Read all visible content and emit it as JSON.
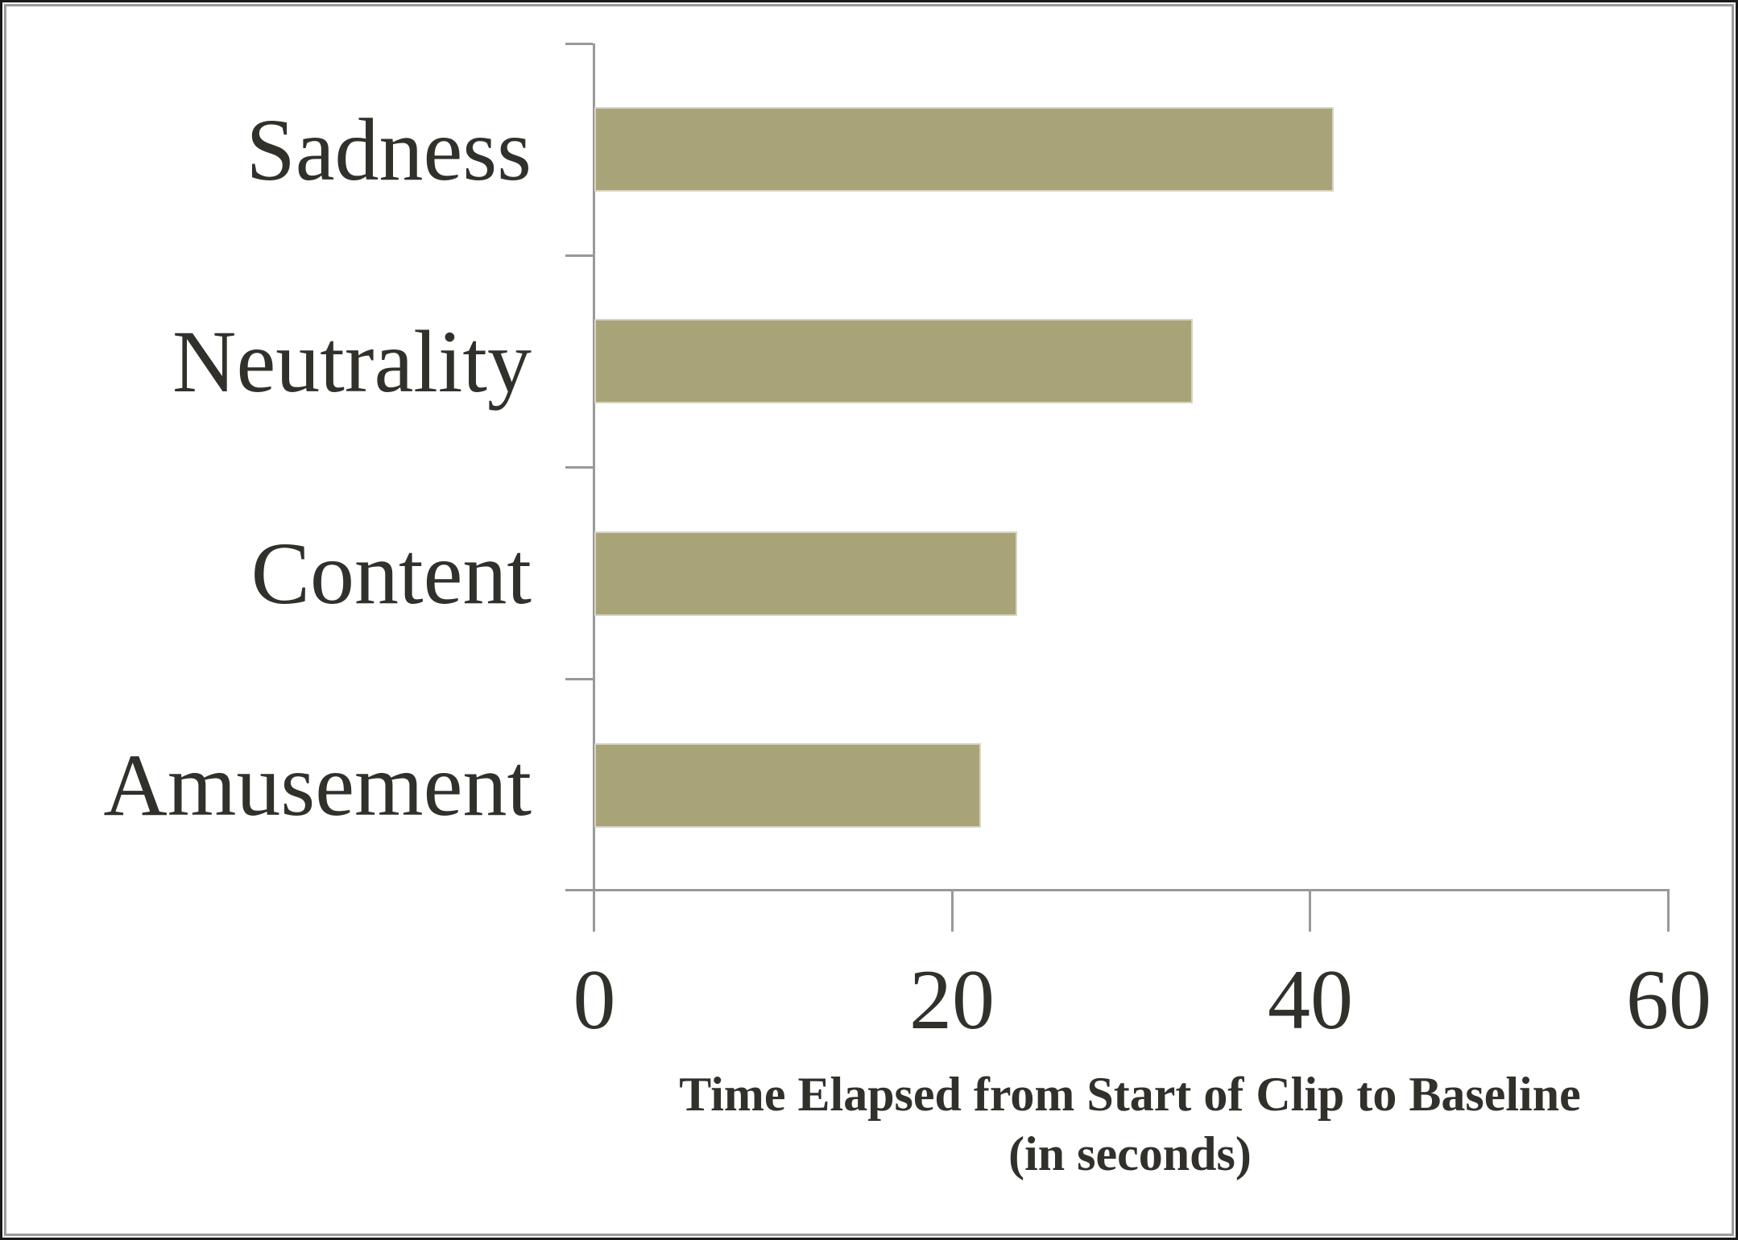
{
  "chart_data": {
    "type": "bar",
    "orientation": "horizontal",
    "categories": [
      "Sadness",
      "Neutrality",
      "Content",
      "Amusement"
    ],
    "values": [
      41.3,
      33.4,
      23.6,
      21.6
    ],
    "xlabel": "Time Elapsed from Start of Clip to Baseline (in seconds)",
    "xlabel_lines": [
      "Time Elapsed from Start of Clip to Baseline",
      "(in seconds)"
    ],
    "xlim": [
      0,
      60
    ],
    "xticks": [
      "0",
      "20",
      "40",
      "60"
    ],
    "xtick_values": [
      0,
      20,
      40,
      60
    ],
    "grid": false,
    "legend": null,
    "colors": {
      "bar": "#A8A478",
      "bar_edge": "#D8D5C3",
      "axis": "#999999",
      "text": "#31302B",
      "frame_outer": "#1A1A1A",
      "frame_inner": "#9B9B9B"
    }
  }
}
